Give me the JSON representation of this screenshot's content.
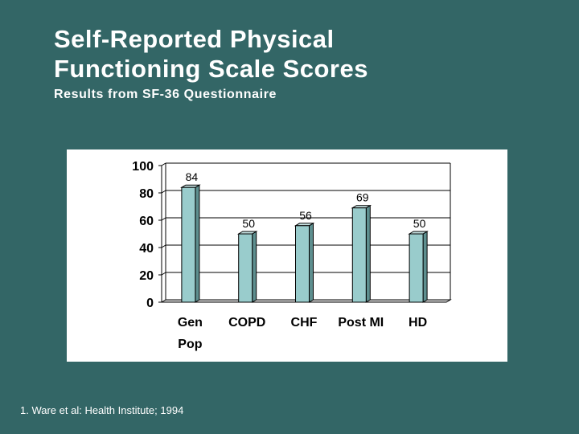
{
  "slide": {
    "title_line1": "Self-Reported Physical",
    "title_line2": "Functioning Scale Scores",
    "subtitle": "Results from SF-36 Questionnaire",
    "footnote": "1. Ware et al: Health Institute; 1994"
  },
  "colors": {
    "background": "#336666",
    "bar_front": "#99CCCC",
    "bar_side": "#5E8F8F",
    "bar_top": "#C8E4E4"
  },
  "chart_data": {
    "type": "bar",
    "title": "",
    "xlabel": "",
    "ylabel": "",
    "categories": [
      [
        "Gen",
        "Pop"
      ],
      [
        "COPD"
      ],
      [
        "CHF"
      ],
      [
        "Post MI"
      ],
      [
        "HD"
      ]
    ],
    "values": [
      84,
      50,
      56,
      69,
      50
    ],
    "data_labels": [
      "84",
      "50",
      "56",
      "69",
      "50"
    ],
    "ylim": [
      0,
      100
    ],
    "yticks": [
      0,
      20,
      40,
      60,
      80,
      100
    ],
    "ytick_labels": [
      "0",
      "20",
      "40",
      "60",
      "80",
      "100"
    ],
    "grid": true,
    "legend": false
  }
}
